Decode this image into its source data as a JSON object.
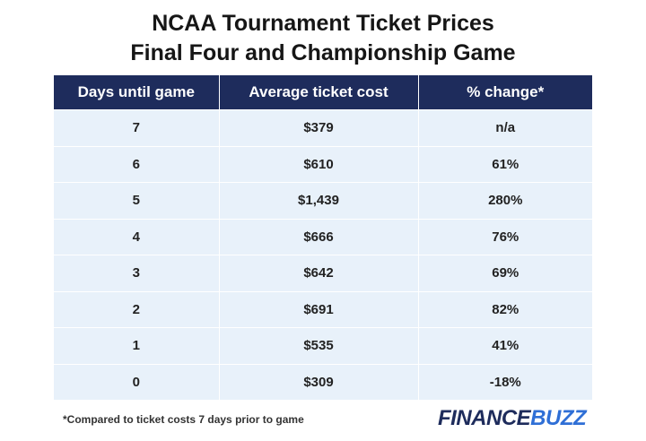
{
  "chart_data": {
    "type": "table",
    "title": "NCAA Tournament Ticket Prices",
    "subtitle": "Final Four and Championship Game",
    "columns": [
      "Days until game",
      "Average ticket cost",
      "% change*"
    ],
    "rows": [
      [
        "7",
        "$379",
        "n/a"
      ],
      [
        "6",
        "$610",
        "61%"
      ],
      [
        "5",
        "$1,439",
        "280%"
      ],
      [
        "4",
        "$666",
        "76%"
      ],
      [
        "3",
        "$642",
        "69%"
      ],
      [
        "2",
        "$691",
        "82%"
      ],
      [
        "1",
        "$535",
        "41%"
      ],
      [
        "0",
        "$309",
        "-18%"
      ]
    ],
    "footnote": "*Compared to ticket costs 7 days prior to game"
  },
  "logo": {
    "part1": "FINANCE",
    "part2": "BUZZ"
  },
  "colors": {
    "header_bg": "#1e2c5c",
    "row_bg": "#e8f1fa",
    "logo_primary": "#1e2c5c",
    "logo_accent": "#2f6fd6"
  }
}
